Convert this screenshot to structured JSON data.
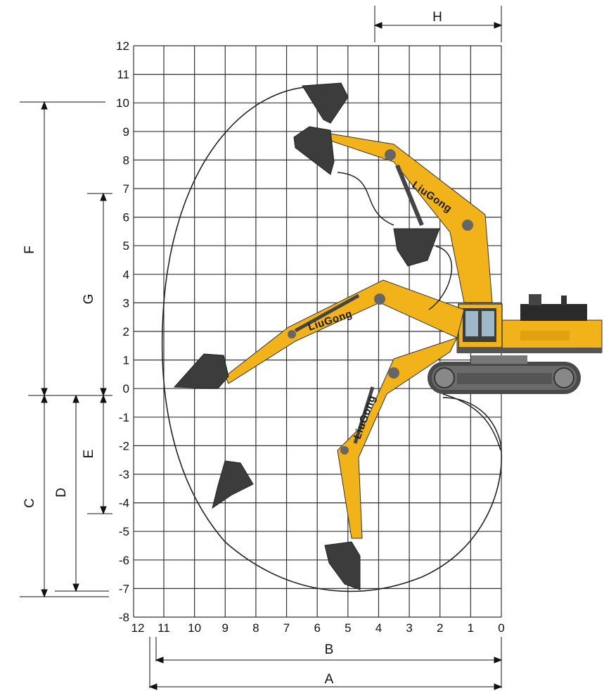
{
  "grid": {
    "y_ticks": [
      "12",
      "11",
      "10",
      "9",
      "8",
      "7",
      "6",
      "5",
      "4",
      "3",
      "2",
      "1",
      "0",
      "-1",
      "-2",
      "-3",
      "-4",
      "-5",
      "-6",
      "-7",
      "-8"
    ],
    "x_ticks": [
      "12",
      "11",
      "10",
      "9",
      "8",
      "7",
      "6",
      "5",
      "4",
      "3",
      "2",
      "1",
      "0"
    ]
  },
  "dimensions": {
    "A": "A",
    "B": "B",
    "C": "C",
    "D": "D",
    "E": "E",
    "F": "F",
    "G": "G",
    "H": "H"
  },
  "brand": "LiuGong",
  "colors": {
    "boom": "#F2B31A",
    "boom_dark": "#D9960F",
    "bucket": "#3C3C3C",
    "track": "#5A5A5A",
    "grid": "#333333",
    "envelope": "#222222"
  }
}
